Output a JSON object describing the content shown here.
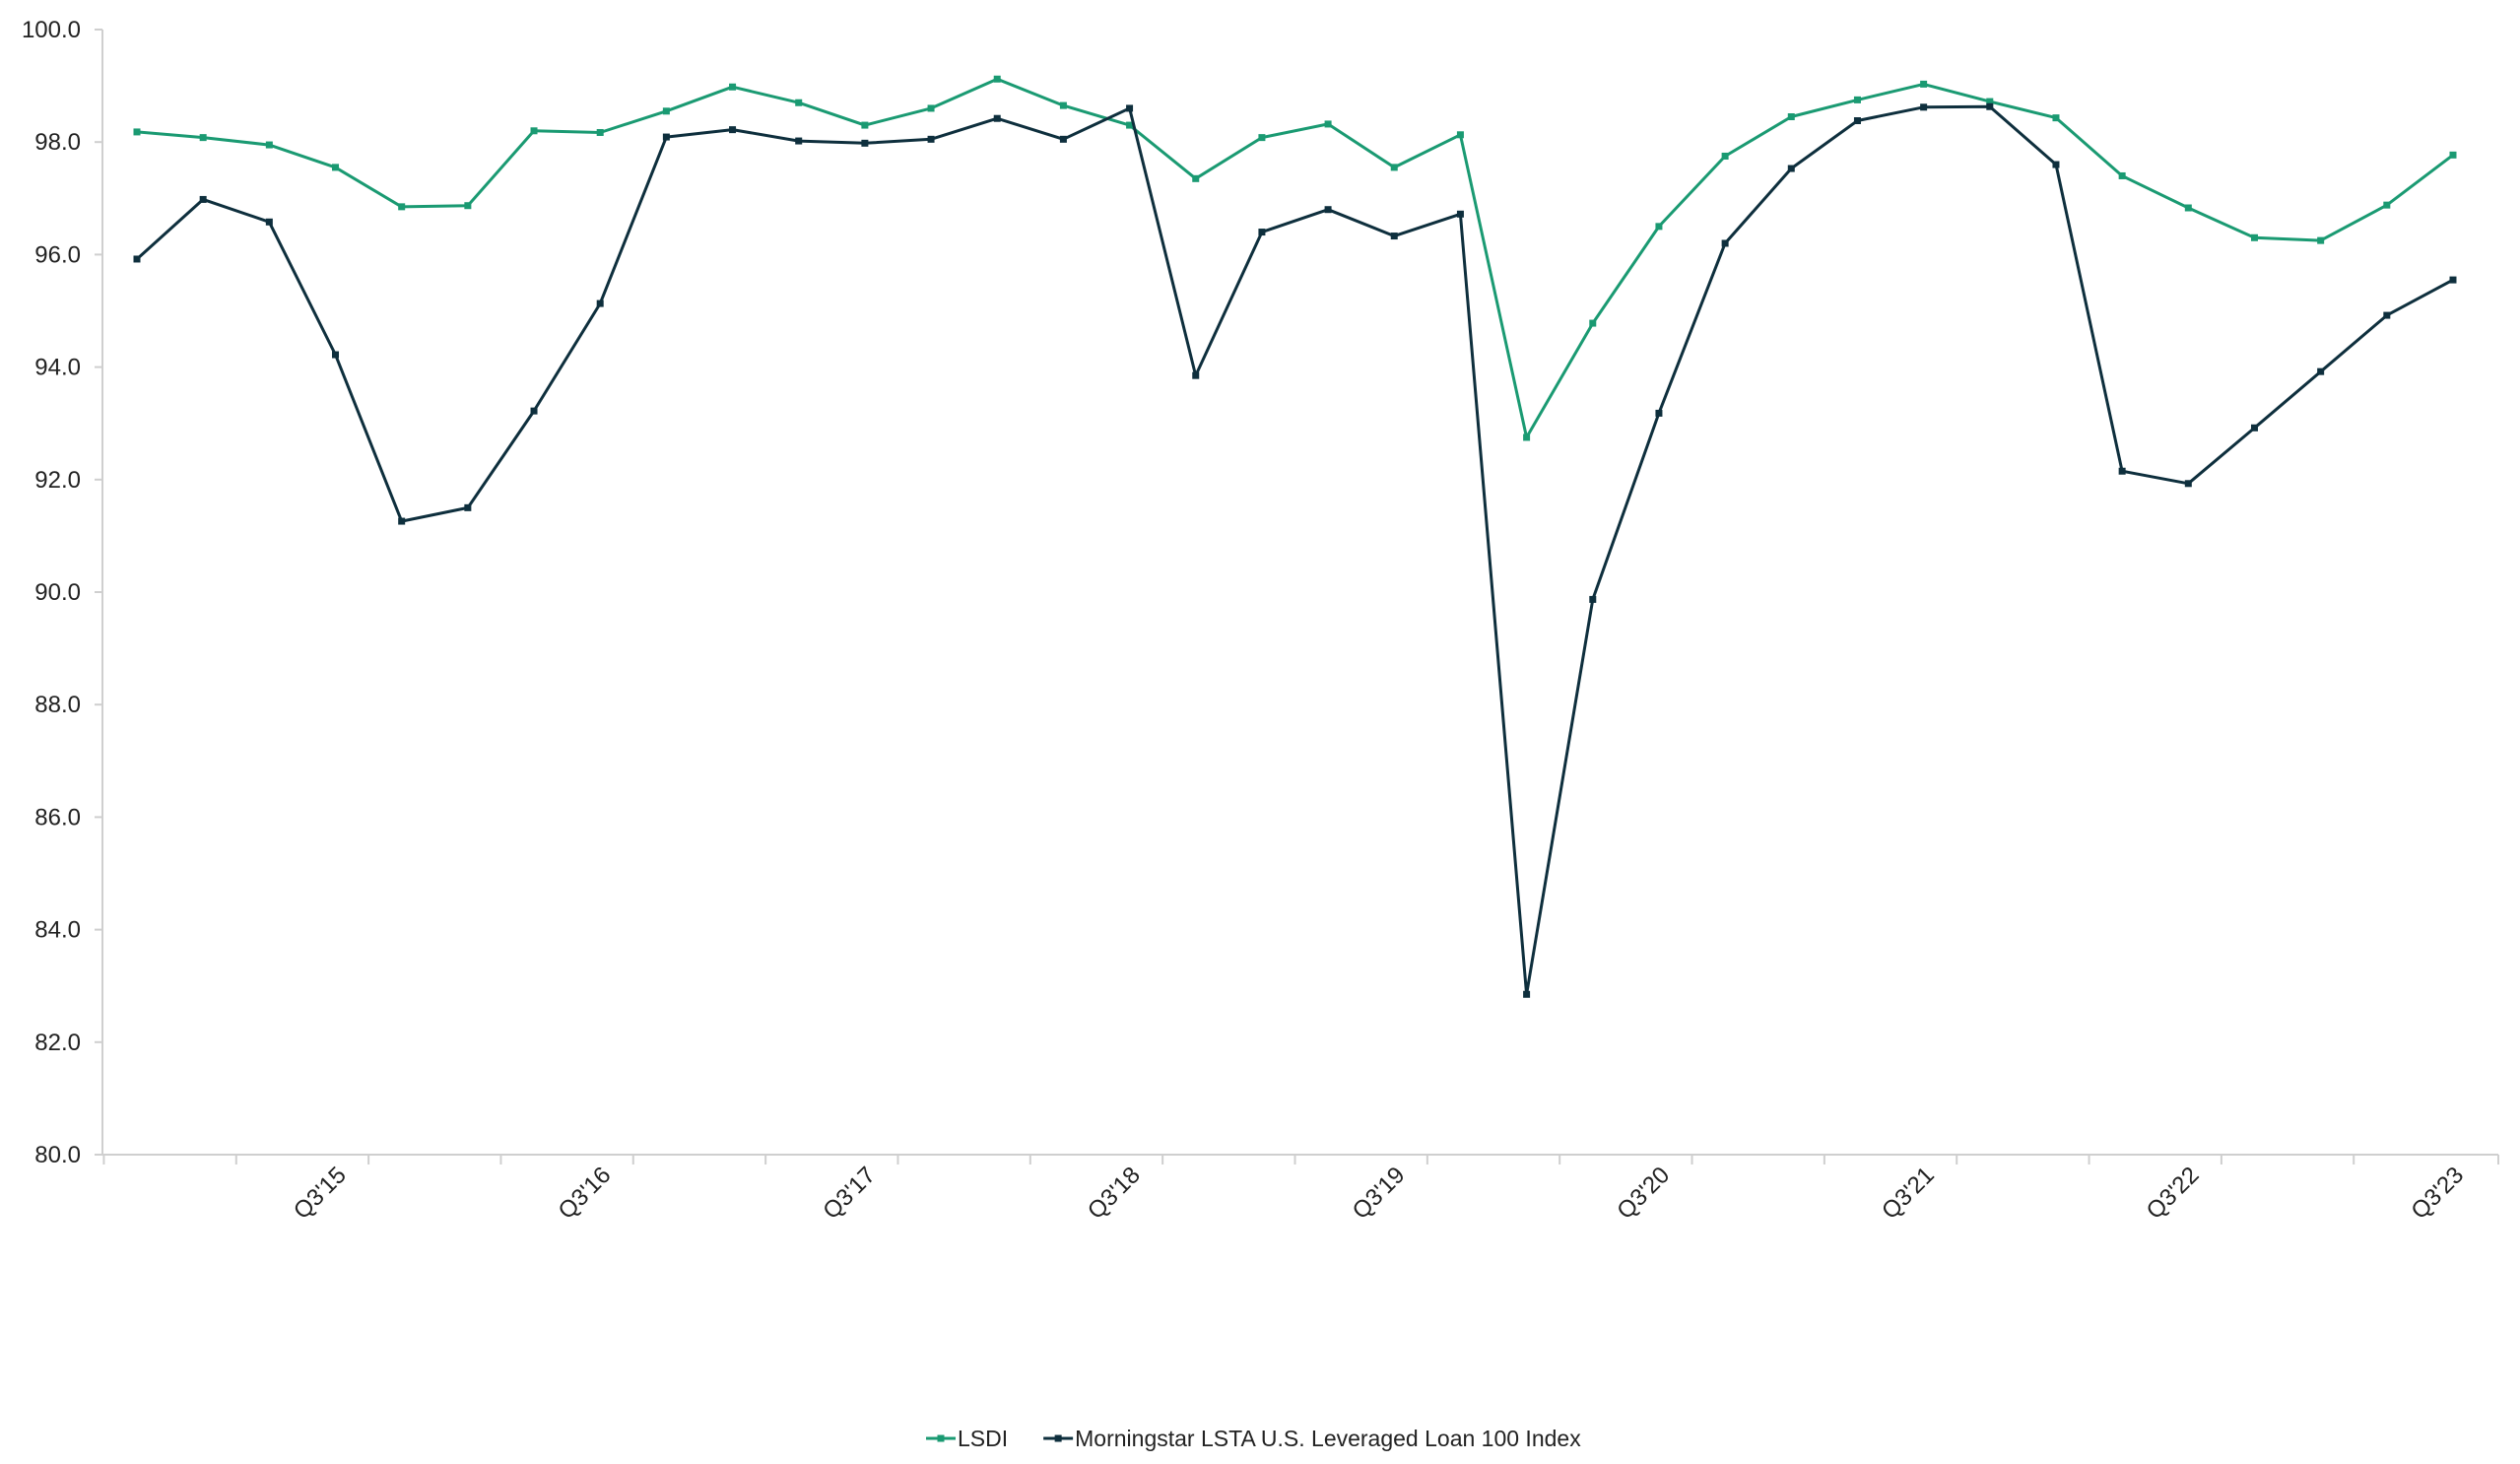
{
  "chart_data": {
    "type": "line",
    "title": "",
    "xlabel": "",
    "ylabel": "",
    "ylim": [
      80,
      100
    ],
    "yticks": [
      80,
      82,
      84,
      86,
      88,
      90,
      92,
      94,
      96,
      98,
      100
    ],
    "ytick_labels": [
      "80.0",
      "82.0",
      "84.0",
      "86.0",
      "88.0",
      "90.0",
      "92.0",
      "94.0",
      "96.0",
      "98.0",
      "100.0"
    ],
    "x": [
      "Q4'14",
      "Q1'15",
      "Q2'15",
      "Q3'15",
      "Q4'15",
      "Q1'16",
      "Q2'16",
      "Q3'16",
      "Q4'16",
      "Q1'17",
      "Q2'17",
      "Q3'17",
      "Q4'17",
      "Q1'18",
      "Q2'18",
      "Q3'18",
      "Q4'18",
      "Q1'19",
      "Q2'19",
      "Q3'19",
      "Q4'19",
      "Q1'20",
      "Q2'20",
      "Q3'20",
      "Q4'20",
      "Q1'21",
      "Q2'21",
      "Q3'21",
      "Q4'21",
      "Q1'22",
      "Q2'22",
      "Q3'22",
      "Q4'22",
      "Q1'23",
      "Q2'23",
      "Q3'23"
    ],
    "x_tick_labels": [
      {
        "index": 3,
        "label": "Q3'15"
      },
      {
        "index": 7,
        "label": "Q3'16"
      },
      {
        "index": 11,
        "label": "Q3'17"
      },
      {
        "index": 15,
        "label": "Q3'18"
      },
      {
        "index": 19,
        "label": "Q3'19"
      },
      {
        "index": 23,
        "label": "Q3'20"
      },
      {
        "index": 27,
        "label": "Q3'21"
      },
      {
        "index": 31,
        "label": "Q3'22"
      },
      {
        "index": 35,
        "label": "Q3'23"
      }
    ],
    "grid": false,
    "legend_position": "bottom-center",
    "series": [
      {
        "name": "LSDI",
        "color": "#1a9a72",
        "values": [
          98.18,
          98.08,
          97.95,
          97.55,
          96.85,
          96.87,
          98.2,
          98.17,
          98.55,
          98.98,
          98.7,
          98.3,
          98.6,
          99.12,
          98.65,
          98.3,
          97.35,
          98.08,
          98.32,
          97.55,
          98.13,
          92.75,
          94.78,
          96.5,
          97.75,
          98.45,
          98.75,
          99.03,
          98.72,
          98.43,
          97.4,
          96.83,
          96.3,
          96.25,
          96.88,
          97.77
        ]
      },
      {
        "name": "Morningstar LSTA U.S. Leveraged Loan 100 Index",
        "color": "#0e2f3d",
        "values": [
          95.92,
          96.98,
          96.58,
          94.22,
          91.26,
          91.5,
          93.22,
          95.13,
          98.09,
          98.22,
          98.02,
          97.98,
          98.05,
          98.42,
          98.05,
          98.6,
          93.85,
          96.4,
          96.8,
          96.33,
          96.72,
          82.85,
          89.87,
          93.18,
          96.2,
          97.53,
          98.38,
          98.62,
          98.63,
          97.6,
          92.15,
          91.93,
          92.92,
          93.92,
          94.92,
          95.55
        ]
      }
    ]
  }
}
